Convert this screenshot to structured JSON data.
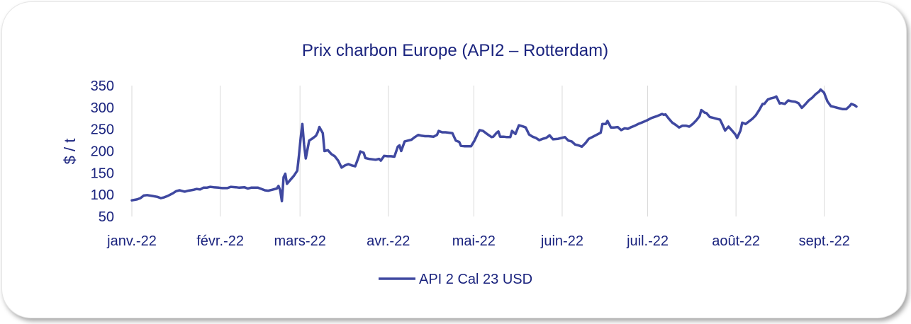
{
  "chart_data": {
    "type": "line",
    "title": "Prix charbon Europe (API2 – Rotterdam)",
    "ylabel": "$ / t",
    "xlabel": "",
    "ylim": [
      50,
      350
    ],
    "yticks": [
      50,
      100,
      150,
      200,
      250,
      300,
      350
    ],
    "xticks": [
      "janv.-22",
      "févr.-22",
      "mars-22",
      "avr.-22",
      "mai-22",
      "juin-22",
      "juil.-22",
      "août-22",
      "sept.-22"
    ],
    "grid": "vertical",
    "legend_position": "bottom",
    "color": "#3f48a0",
    "series": [
      {
        "name": "API 2 Cal 23 USD",
        "points": [
          [
            0,
            87
          ],
          [
            3,
            89
          ],
          [
            5,
            92
          ],
          [
            7,
            98
          ],
          [
            9,
            99
          ],
          [
            12,
            97
          ],
          [
            15,
            95
          ],
          [
            17,
            92
          ],
          [
            19,
            94
          ],
          [
            21,
            97
          ],
          [
            24,
            103
          ],
          [
            26,
            108
          ],
          [
            28,
            110
          ],
          [
            31,
            107
          ],
          [
            33,
            109
          ],
          [
            36,
            111
          ],
          [
            38,
            113
          ],
          [
            40,
            112
          ],
          [
            42,
            116
          ],
          [
            44,
            116
          ],
          [
            46,
            118
          ],
          [
            48,
            117
          ],
          [
            51,
            116
          ],
          [
            53,
            115
          ],
          [
            56,
            115
          ],
          [
            58,
            118
          ],
          [
            61,
            117
          ],
          [
            63,
            116
          ],
          [
            66,
            117
          ],
          [
            68,
            114
          ],
          [
            70,
            116
          ],
          [
            72,
            116
          ],
          [
            74,
            116
          ],
          [
            76,
            113
          ],
          [
            78,
            110
          ],
          [
            80,
            109
          ],
          [
            82,
            111
          ],
          [
            85,
            114
          ],
          [
            86,
            120
          ],
          [
            87,
            110
          ],
          [
            88,
            85
          ],
          [
            89,
            140
          ],
          [
            90,
            148
          ],
          [
            91,
            125
          ],
          [
            93,
            134
          ],
          [
            95,
            143
          ],
          [
            97,
            155
          ],
          [
            98,
            190
          ],
          [
            99,
            230
          ],
          [
            100,
            262
          ],
          [
            101,
            215
          ],
          [
            102,
            183
          ],
          [
            104,
            224
          ],
          [
            106,
            229
          ],
          [
            108,
            235
          ],
          [
            109,
            243
          ],
          [
            110,
            255
          ],
          [
            112,
            241
          ],
          [
            113,
            200
          ],
          [
            115,
            202
          ],
          [
            117,
            193
          ],
          [
            119,
            188
          ],
          [
            121,
            178
          ],
          [
            123,
            162
          ],
          [
            125,
            167
          ],
          [
            127,
            170
          ],
          [
            129,
            167
          ],
          [
            131,
            165
          ],
          [
            133,
            186
          ],
          [
            134,
            199
          ],
          [
            136,
            196
          ],
          [
            137,
            184
          ],
          [
            139,
            182
          ],
          [
            141,
            181
          ],
          [
            143,
            180
          ],
          [
            145,
            182
          ],
          [
            146,
            178
          ],
          [
            148,
            189
          ],
          [
            150,
            188
          ],
          [
            152,
            188
          ],
          [
            154,
            187
          ],
          [
            156,
            210
          ],
          [
            157,
            213
          ],
          [
            158,
            200
          ],
          [
            160,
            222
          ],
          [
            162,
            224
          ],
          [
            164,
            226
          ],
          [
            166,
            232
          ],
          [
            168,
            237
          ],
          [
            170,
            235
          ],
          [
            172,
            234
          ],
          [
            174,
            234
          ],
          [
            177,
            233
          ],
          [
            179,
            237
          ],
          [
            180,
            246
          ],
          [
            182,
            243
          ],
          [
            184,
            243
          ],
          [
            186,
            242
          ],
          [
            188,
            241
          ],
          [
            190,
            224
          ],
          [
            192,
            221
          ],
          [
            193,
            212
          ],
          [
            195,
            211
          ],
          [
            197,
            211
          ],
          [
            199,
            211
          ],
          [
            201,
            224
          ],
          [
            203,
            241
          ],
          [
            204,
            248
          ],
          [
            206,
            246
          ],
          [
            208,
            240
          ],
          [
            211,
            232
          ],
          [
            212,
            233
          ],
          [
            214,
            242
          ],
          [
            215,
            245
          ],
          [
            216,
            233
          ],
          [
            218,
            233
          ],
          [
            220,
            232
          ],
          [
            222,
            232
          ],
          [
            223,
            246
          ],
          [
            225,
            239
          ],
          [
            227,
            259
          ],
          [
            229,
            257
          ],
          [
            231,
            254
          ],
          [
            233,
            238
          ],
          [
            235,
            233
          ],
          [
            237,
            230
          ],
          [
            239,
            225
          ],
          [
            241,
            228
          ],
          [
            243,
            230
          ],
          [
            245,
            236
          ],
          [
            247,
            227
          ],
          [
            250,
            228
          ],
          [
            252,
            230
          ],
          [
            254,
            232
          ],
          [
            256,
            224
          ],
          [
            258,
            222
          ],
          [
            260,
            215
          ],
          [
            262,
            213
          ],
          [
            264,
            210
          ],
          [
            266,
            218
          ],
          [
            268,
            228
          ],
          [
            270,
            232
          ],
          [
            273,
            238
          ],
          [
            275,
            242
          ],
          [
            276,
            262
          ],
          [
            278,
            262
          ],
          [
            279,
            269
          ],
          [
            281,
            254
          ],
          [
            283,
            254
          ],
          [
            285,
            255
          ],
          [
            287,
            248
          ],
          [
            289,
            252
          ],
          [
            291,
            251
          ],
          [
            293,
            255
          ],
          [
            295,
            258
          ],
          [
            297,
            262
          ],
          [
            299,
            265
          ],
          [
            302,
            270
          ],
          [
            305,
            276
          ],
          [
            308,
            280
          ],
          [
            311,
            285
          ],
          [
            312,
            283
          ],
          [
            313,
            284
          ],
          [
            315,
            274
          ],
          [
            317,
            265
          ],
          [
            319,
            260
          ],
          [
            321,
            254
          ],
          [
            323,
            258
          ],
          [
            325,
            258
          ],
          [
            327,
            256
          ],
          [
            329,
            262
          ],
          [
            331,
            270
          ],
          [
            333,
            280
          ],
          [
            334,
            294
          ],
          [
            336,
            288
          ],
          [
            337,
            287
          ],
          [
            339,
            278
          ],
          [
            341,
            276
          ],
          [
            343,
            274
          ],
          [
            345,
            272
          ],
          [
            346,
            264
          ],
          [
            348,
            247
          ],
          [
            350,
            256
          ],
          [
            352,
            247
          ],
          [
            354,
            238
          ],
          [
            355,
            230
          ],
          [
            357,
            247
          ],
          [
            358,
            265
          ],
          [
            360,
            262
          ],
          [
            362,
            268
          ],
          [
            364,
            274
          ],
          [
            366,
            282
          ],
          [
            368,
            294
          ],
          [
            370,
            308
          ],
          [
            371,
            308
          ],
          [
            373,
            318
          ],
          [
            375,
            321
          ],
          [
            377,
            323
          ],
          [
            378,
            325
          ],
          [
            380,
            309
          ],
          [
            381,
            310
          ],
          [
            383,
            308
          ],
          [
            385,
            316
          ],
          [
            387,
            314
          ],
          [
            389,
            313
          ],
          [
            391,
            310
          ],
          [
            393,
            299
          ],
          [
            395,
            307
          ],
          [
            397,
            316
          ],
          [
            399,
            322
          ],
          [
            401,
            330
          ],
          [
            403,
            336
          ],
          [
            404,
            341
          ],
          [
            406,
            334
          ],
          [
            408,
            314
          ],
          [
            410,
            303
          ],
          [
            412,
            301
          ],
          [
            414,
            299
          ],
          [
            417,
            296
          ],
          [
            419,
            296
          ],
          [
            421,
            303
          ],
          [
            422,
            308
          ],
          [
            424,
            305
          ],
          [
            425,
            302
          ]
        ]
      }
    ]
  }
}
